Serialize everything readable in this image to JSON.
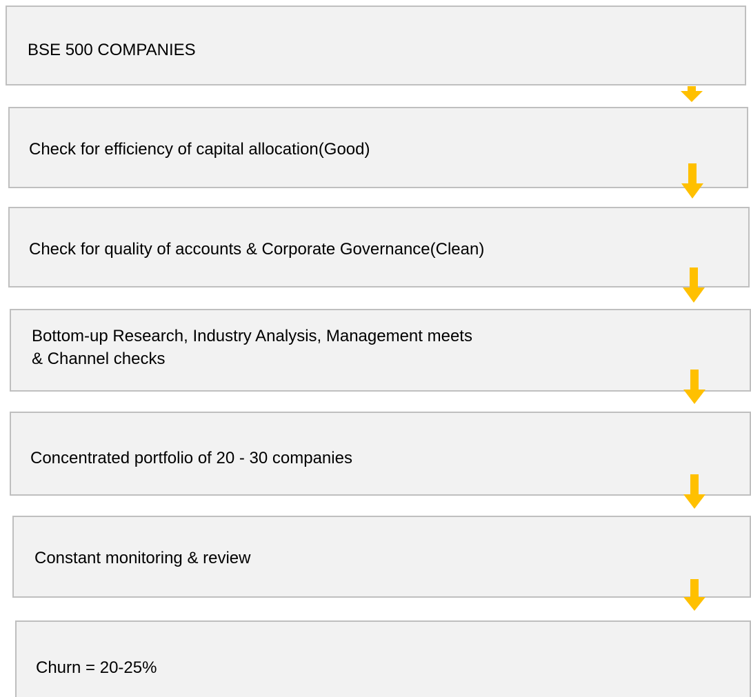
{
  "steps": [
    {
      "lines": [
        "BSE 500 COMPANIES"
      ]
    },
    {
      "lines": [
        "Check for efficiency of capital allocation(Good)"
      ]
    },
    {
      "lines": [
        "Check for quality of accounts & Corporate Governance(Clean)"
      ]
    },
    {
      "lines": [
        "Bottom-up Research, Industry Analysis, Management meets",
        "& Channel checks"
      ]
    },
    {
      "lines": [
        "Concentrated portfolio of 20 - 30 companies"
      ]
    },
    {
      "lines": [
        "Constant monitoring & review"
      ]
    },
    {
      "lines": [
        "Churn = 20-25%"
      ]
    }
  ]
}
